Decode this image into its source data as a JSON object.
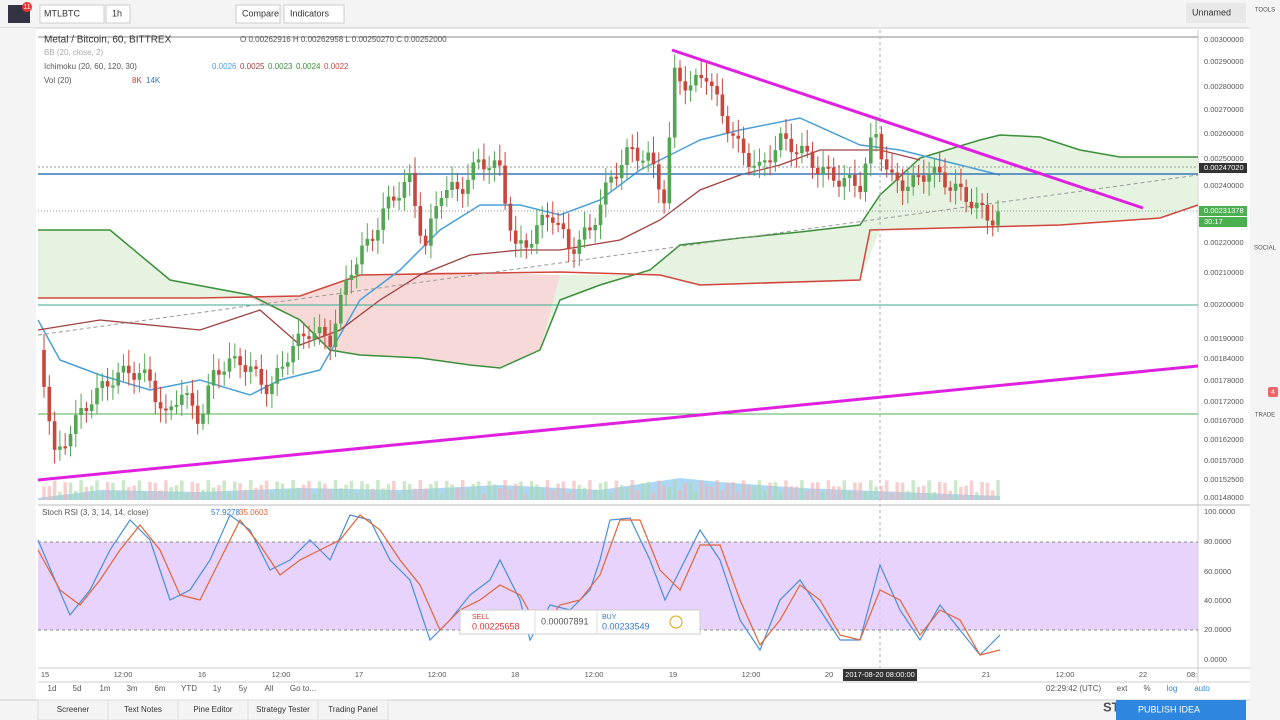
{
  "top_toolbar": {
    "symbol": "MTLBTC",
    "interval": "1h",
    "compare": "Compare",
    "indicators": "Indicators",
    "layout_name": "Unnamed",
    "badge": "11"
  },
  "legend": {
    "title": "Metal / Bitcoin, 60, BITTREX",
    "ohlc": "O 0.00262916 H 0.00262958 L 0.00250270 C 0.00252000",
    "bb": "BB (20, close, 2)",
    "ichimoku": "Ichimoku (20, 60, 120, 30)",
    "ichimoku_values": [
      "0.0026",
      "0.0025",
      "0.0023",
      "0.0024",
      "0.0022"
    ],
    "vol": "Vol (20)",
    "vol_values": [
      "8K",
      "14K"
    ],
    "stoch": "Stoch RSI (3, 3, 14, 14, close)",
    "stoch_values": [
      "57.9278",
      "35.0603"
    ]
  },
  "price_axis": [
    "0.00300000",
    "0.00290000",
    "0.00280000",
    "0.00270000",
    "0.00260000",
    "0.00250000",
    "0.00247020",
    "0.00240000",
    "0.00231378",
    "30:17",
    "0.00220000",
    "0.00210000",
    "0.00200000",
    "0.00190000",
    "0.00184000",
    "0.00178000",
    "0.00172000",
    "0.00167000",
    "0.00162000",
    "0.00157000",
    "0.00152500",
    "0.00148000"
  ],
  "stoch_axis": [
    "100.0000",
    "80.0000",
    "60.0000",
    "40.0000",
    "20.0000",
    "0.0000"
  ],
  "time_axis": [
    "15",
    "12:00",
    "16",
    "12:00",
    "17",
    "12:00",
    "18",
    "12:00",
    "19",
    "12:00",
    "20",
    "2017-08-20 08:00:00",
    "21",
    "12:00",
    "22",
    "08:"
  ],
  "trade_widget": {
    "sell_label": "SELL",
    "sell": "0.00225658",
    "spread": "0.00007891",
    "buy_label": "BUY",
    "buy": "0.00233549"
  },
  "range_bar": {
    "ranges": [
      "1d",
      "5d",
      "1m",
      "3m",
      "6m",
      "YTD",
      "1y",
      "5y",
      "All",
      "Go to..."
    ],
    "clock": "02:29:42 (UTC)",
    "options": [
      "ext",
      "%",
      "log",
      "auto"
    ]
  },
  "bottom_tabs": [
    "Screener",
    "Text Notes",
    "Pine Editor",
    "Strategy Tester",
    "Trading Panel"
  ],
  "bottom_right": {
    "st": "ST",
    "publish": "PUBLISH IDEA"
  },
  "right_toolbar": {
    "tools": "TOOLS",
    "social": "SOCIAL",
    "trade": "TRADE",
    "badge": "4"
  }
}
